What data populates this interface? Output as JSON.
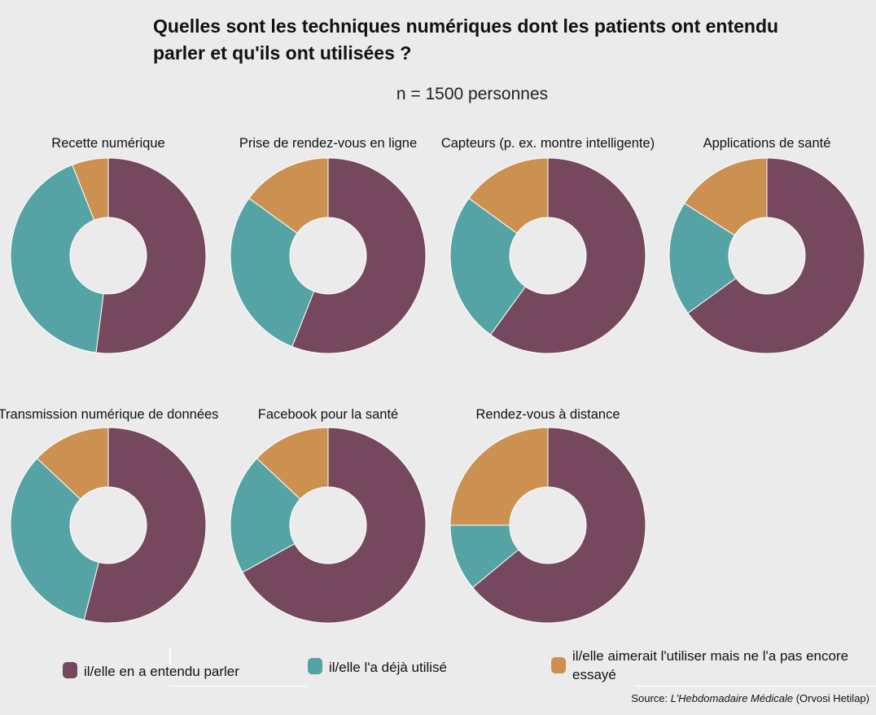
{
  "title": "Quelles sont les techniques numériques dont les patients ont entendu parler et qu'ils ont utilisées ?",
  "subtitle_prefix": "n = 1500",
  "subtitle_suffix": " personnes",
  "colors": {
    "heard": "#76485d",
    "used": "#55a3a4",
    "want": "#cc9150",
    "background": "#ebebeb"
  },
  "legend": [
    {
      "label": "il/elle en a entendu parler",
      "color": "#76485d"
    },
    {
      "label": "il/elle l'a déjà utilisé",
      "color": "#55a3a4"
    },
    {
      "label": "il/elle aimerait l'utiliser mais ne l'a pas encore essayé",
      "color": "#cc9150"
    }
  ],
  "source_prefix": "Source: ",
  "source_publication": "L’Hebdomadaire Médicale",
  "source_suffix": " (Orvosi Hetilap)",
  "chart_data": {
    "type": "donut",
    "series_labels": [
      "il/elle en a entendu parler",
      "il/elle l'a déjà utilisé",
      "il/elle aimerait l'utiliser mais ne l'a pas encore essayé"
    ],
    "series_colors": [
      "#76485d",
      "#55a3a4",
      "#cc9150"
    ],
    "charts": [
      {
        "title": "Recette numérique",
        "values": [
          52,
          42,
          6
        ]
      },
      {
        "title": "Prise de rendez-vous en ligne",
        "values": [
          56,
          29,
          15
        ]
      },
      {
        "title": "Capteurs (p. ex. montre intelligente)",
        "values": [
          60,
          25,
          15
        ]
      },
      {
        "title": "Applications de santé",
        "values": [
          65,
          19,
          16
        ]
      },
      {
        "title": "Transmission numérique de données",
        "values": [
          54,
          33,
          13
        ]
      },
      {
        "title": "Facebook pour la santé",
        "values": [
          67,
          20,
          13
        ]
      },
      {
        "title": "Rendez-vous à distance",
        "values": [
          64,
          11,
          25
        ]
      }
    ]
  }
}
